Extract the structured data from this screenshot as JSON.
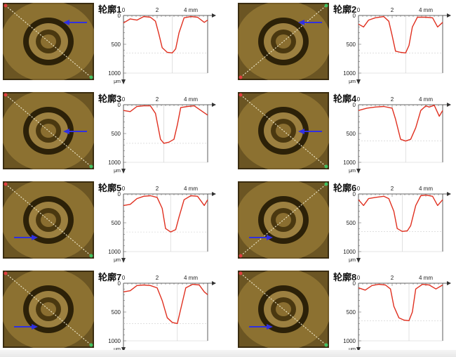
{
  "chart_data": [
    {
      "type": "line",
      "title": "轮廓1",
      "x_axis": {
        "ticks": [
          0,
          2,
          4
        ],
        "unit": "mm",
        "xlim": [
          0,
          5
        ]
      },
      "y_axis": {
        "ticks": [
          0,
          500,
          1000
        ],
        "unit": "μm",
        "ylim": [
          0,
          1000
        ],
        "inverted": true
      },
      "grid": false,
      "photo": {
        "scan_line": "top-left to bottom-right",
        "arrow": "right, pointing left",
        "colors": {
          "bg": "#6b5523",
          "ring": "#9c8040",
          "center": "#8a6e30"
        }
      },
      "x": [
        0,
        0.4,
        0.8,
        1.2,
        1.6,
        1.9,
        2.1,
        2.3,
        2.6,
        2.9,
        3.1,
        3.3,
        3.6,
        4.0,
        4.4,
        4.8,
        5.0
      ],
      "y": [
        130,
        60,
        80,
        20,
        30,
        100,
        320,
        560,
        640,
        650,
        580,
        300,
        40,
        20,
        30,
        120,
        80
      ]
    },
    {
      "type": "line",
      "title": "轮廓2",
      "x_axis": {
        "ticks": [
          0,
          2,
          4
        ],
        "unit": "mm",
        "xlim": [
          0,
          5
        ]
      },
      "y_axis": {
        "ticks": [
          0,
          500,
          1000
        ],
        "unit": "μm",
        "ylim": [
          0,
          1000
        ],
        "inverted": true
      },
      "grid": false,
      "photo": {
        "scan_line": "bottom-left to top-right",
        "arrow": "right, pointing left",
        "colors": {
          "bg": "#6b5523",
          "ring": "#9c8040",
          "center": "#8a6e30"
        }
      },
      "x": [
        0,
        0.3,
        0.6,
        1.0,
        1.5,
        1.8,
        2.0,
        2.2,
        2.5,
        2.8,
        3.0,
        3.2,
        3.5,
        4.0,
        4.4,
        4.7,
        5.0
      ],
      "y": [
        150,
        200,
        80,
        40,
        20,
        100,
        350,
        620,
        640,
        650,
        520,
        200,
        30,
        30,
        40,
        200,
        120
      ]
    },
    {
      "type": "line",
      "title": "轮廓3",
      "x_axis": {
        "ticks": [
          0,
          2,
          4
        ],
        "unit": "mm",
        "xlim": [
          0,
          5
        ]
      },
      "y_axis": {
        "ticks": [
          0,
          500,
          1000
        ],
        "unit": "μm",
        "ylim": [
          0,
          1000
        ],
        "inverted": true
      },
      "grid": false,
      "photo": {
        "scan_line": "top-left to bottom-right",
        "arrow": "right, pointing left",
        "colors": {
          "bg": "#6b5523",
          "ring": "#9c8040",
          "center": "#8a6e30"
        }
      },
      "x": [
        0,
        0.4,
        0.8,
        1.2,
        1.6,
        1.9,
        2.2,
        2.4,
        2.7,
        3.0,
        3.2,
        3.4,
        3.8,
        4.2,
        4.6,
        5.0
      ],
      "y": [
        100,
        120,
        30,
        20,
        20,
        150,
        600,
        670,
        650,
        600,
        350,
        50,
        30,
        20,
        100,
        180
      ]
    },
    {
      "type": "line",
      "title": "轮廓4",
      "x_axis": {
        "ticks": [
          0,
          2,
          4
        ],
        "unit": "mm",
        "xlim": [
          0,
          5
        ]
      },
      "y_axis": {
        "ticks": [
          0,
          500,
          1000
        ],
        "unit": "μm",
        "ylim": [
          0,
          1000
        ],
        "inverted": true
      },
      "grid": false,
      "photo": {
        "scan_line": "top-left to bottom-right",
        "arrow": "right, pointing left",
        "colors": {
          "bg": "#6b5523",
          "ring": "#9c8040",
          "center": "#8a6e30"
        }
      },
      "x": [
        0,
        0.5,
        1.0,
        1.5,
        2.0,
        2.2,
        2.5,
        2.8,
        3.1,
        3.4,
        3.7,
        4.0,
        4.2,
        4.5,
        4.8,
        5.0
      ],
      "y": [
        100,
        60,
        40,
        30,
        60,
        250,
        600,
        630,
        600,
        400,
        100,
        20,
        40,
        10,
        200,
        100
      ]
    },
    {
      "type": "line",
      "title": "轮廓5",
      "x_axis": {
        "ticks": [
          0,
          2,
          4
        ],
        "unit": "mm",
        "xlim": [
          0,
          5
        ]
      },
      "y_axis": {
        "ticks": [
          0,
          500,
          1000
        ],
        "unit": "μm",
        "ylim": [
          0,
          1000
        ],
        "inverted": true
      },
      "grid": false,
      "photo": {
        "scan_line": "top-left to bottom-right",
        "arrow": "left, pointing right",
        "colors": {
          "bg": "#6b5523",
          "ring": "#9c8040",
          "center": "#8a6e30"
        }
      },
      "x": [
        0,
        0.4,
        0.8,
        1.2,
        1.6,
        2.0,
        2.3,
        2.5,
        2.8,
        3.1,
        3.3,
        3.6,
        4.0,
        4.4,
        4.8,
        5.0
      ],
      "y": [
        200,
        180,
        80,
        40,
        30,
        60,
        250,
        600,
        660,
        620,
        400,
        100,
        30,
        40,
        200,
        100
      ]
    },
    {
      "type": "line",
      "title": "轮廓6",
      "x_axis": {
        "ticks": [
          0,
          2,
          4
        ],
        "unit": "mm",
        "xlim": [
          0,
          5
        ]
      },
      "y_axis": {
        "ticks": [
          0,
          500,
          1000
        ],
        "unit": "μm",
        "ylim": [
          0,
          1000
        ],
        "inverted": true
      },
      "grid": false,
      "photo": {
        "scan_line": "bottom-left to top-right",
        "arrow": "left, pointing right",
        "colors": {
          "bg": "#6b5523",
          "ring": "#9c8040",
          "center": "#8a6e30"
        }
      },
      "x": [
        0,
        0.3,
        0.6,
        1.0,
        1.5,
        1.8,
        2.1,
        2.3,
        2.6,
        2.9,
        3.1,
        3.4,
        3.7,
        4.0,
        4.4,
        4.7,
        5.0
      ],
      "y": [
        100,
        200,
        80,
        60,
        40,
        80,
        300,
        600,
        650,
        640,
        550,
        200,
        30,
        20,
        40,
        200,
        100
      ]
    },
    {
      "type": "line",
      "title": "轮廓7",
      "x_axis": {
        "ticks": [
          0,
          2,
          4
        ],
        "unit": "mm",
        "xlim": [
          0,
          5
        ]
      },
      "y_axis": {
        "ticks": [
          0,
          500,
          1000
        ],
        "unit": "μm",
        "ylim": [
          0,
          1000
        ],
        "inverted": true
      },
      "grid": false,
      "photo": {
        "scan_line": "top-left to bottom-right",
        "arrow": "left, pointing right",
        "colors": {
          "bg": "#6b5523",
          "ring": "#9c8040",
          "center": "#8a6e30"
        }
      },
      "x": [
        0,
        0.4,
        0.8,
        1.2,
        1.6,
        2.0,
        2.3,
        2.6,
        2.9,
        3.2,
        3.4,
        3.7,
        4.1,
        4.5,
        4.8,
        5.0
      ],
      "y": [
        150,
        130,
        40,
        30,
        40,
        80,
        300,
        600,
        680,
        700,
        450,
        80,
        20,
        30,
        150,
        200
      ]
    },
    {
      "type": "line",
      "title": "轮廓8",
      "x_axis": {
        "ticks": [
          0,
          2,
          4
        ],
        "unit": "mm",
        "xlim": [
          0,
          5
        ]
      },
      "y_axis": {
        "ticks": [
          0,
          500,
          1000
        ],
        "unit": "μm",
        "ylim": [
          0,
          1000
        ],
        "inverted": true
      },
      "grid": false,
      "photo": {
        "scan_line": "top-left to bottom-right",
        "arrow": "left, pointing right",
        "colors": {
          "bg": "#6b5523",
          "ring": "#9c8040",
          "center": "#8a6e30"
        }
      },
      "x": [
        0,
        0.4,
        0.8,
        1.2,
        1.6,
        1.9,
        2.1,
        2.4,
        2.7,
        3.0,
        3.2,
        3.4,
        3.8,
        4.2,
        4.6,
        5.0
      ],
      "y": [
        80,
        120,
        40,
        20,
        30,
        100,
        400,
        600,
        640,
        650,
        500,
        100,
        20,
        30,
        100,
        30
      ]
    }
  ],
  "arrow_color": "#3030e0",
  "line_color": "#e03020"
}
